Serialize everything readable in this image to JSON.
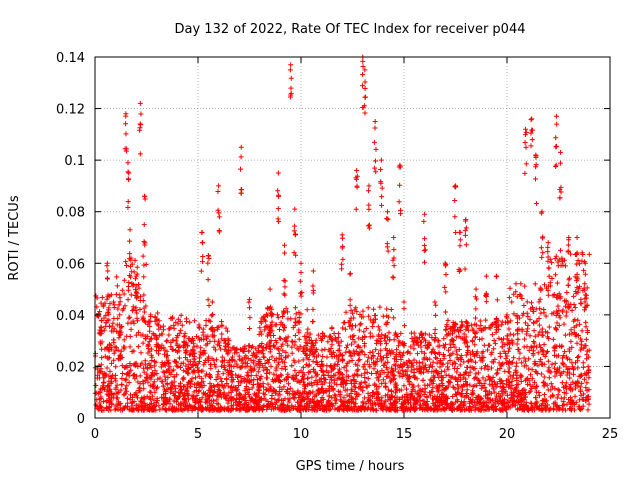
{
  "chart_data": {
    "type": "scatter",
    "title": "Day 132 of 2022, Rate Of TEC Index for receiver p044",
    "xlabel": "GPS time / hours",
    "ylabel": "ROTI / TECUs",
    "xlim": [
      0,
      25
    ],
    "ylim": [
      0,
      0.14
    ],
    "xticks": [
      0,
      5,
      10,
      15,
      20,
      25
    ],
    "xtick_labels": [
      "0",
      "5",
      "10",
      "15",
      "20",
      "25"
    ],
    "yticks": [
      0,
      0.02,
      0.04,
      0.06,
      0.08,
      0.1,
      0.12,
      0.14
    ],
    "ytick_labels": [
      "0",
      "0.02",
      "0.04",
      "0.06",
      "0.08",
      "0.1",
      "0.12",
      "0.14"
    ],
    "grid": true,
    "marker": "+",
    "marker_color": "#ff0000",
    "series": [
      {
        "x": [
          0.3,
          0.6,
          0.9,
          1.2,
          1.5,
          1.6,
          1.7,
          2.0,
          2.2,
          2.4,
          2.7,
          3.0,
          3.5,
          4.0,
          4.5,
          5.2,
          5.5,
          5.7,
          6.0,
          6.5,
          7.0,
          7.1,
          7.5,
          8.0,
          8.5,
          8.9,
          9.2,
          9.5,
          9.7,
          10.0,
          10.3,
          10.6,
          11.0,
          11.5,
          12.0,
          12.4,
          12.7,
          13.0,
          13.1,
          13.3,
          13.6,
          13.9,
          14.2,
          14.5,
          14.8,
          15.0,
          15.5,
          16.0,
          16.5,
          17.0,
          17.5,
          17.7,
          18.0,
          18.5,
          19.0,
          19.5,
          20.0,
          20.5,
          20.9,
          21.2,
          21.4,
          21.7,
          22.0,
          22.4,
          22.6,
          23.0,
          23.4,
          23.8
        ],
        "y": [
          0.035,
          0.06,
          0.045,
          0.04,
          0.118,
          0.099,
          0.073,
          0.055,
          0.122,
          0.086,
          0.04,
          0.038,
          0.03,
          0.032,
          0.028,
          0.072,
          0.063,
          0.045,
          0.09,
          0.03,
          0.024,
          0.105,
          0.046,
          0.035,
          0.05,
          0.095,
          0.067,
          0.137,
          0.081,
          0.06,
          0.042,
          0.057,
          0.03,
          0.035,
          0.071,
          0.056,
          0.096,
          0.14,
          0.135,
          0.09,
          0.115,
          0.1,
          0.08,
          0.07,
          0.098,
          0.045,
          0.03,
          0.079,
          0.045,
          0.06,
          0.09,
          0.072,
          0.077,
          0.05,
          0.055,
          0.055,
          0.04,
          0.047,
          0.112,
          0.116,
          0.102,
          0.08,
          0.068,
          0.117,
          0.103,
          0.07,
          0.07,
          0.06
        ]
      }
    ],
    "scatter_density": [
      {
        "t0": 0.0,
        "t1": 1.0,
        "hi": 0.045
      },
      {
        "t0": 1.0,
        "t1": 2.5,
        "hi": 0.06
      },
      {
        "t0": 2.5,
        "t1": 4.5,
        "hi": 0.038
      },
      {
        "t0": 4.5,
        "t1": 6.5,
        "hi": 0.035
      },
      {
        "t0": 6.5,
        "t1": 8.0,
        "hi": 0.025
      },
      {
        "t0": 8.0,
        "t1": 10.0,
        "hi": 0.04
      },
      {
        "t0": 10.0,
        "t1": 12.0,
        "hi": 0.03
      },
      {
        "t0": 12.0,
        "t1": 14.5,
        "hi": 0.04
      },
      {
        "t0": 14.5,
        "t1": 17.0,
        "hi": 0.03
      },
      {
        "t0": 17.0,
        "t1": 20.0,
        "hi": 0.035
      },
      {
        "t0": 20.0,
        "t1": 22.0,
        "hi": 0.05
      },
      {
        "t0": 22.0,
        "t1": 24.0,
        "hi": 0.062
      }
    ]
  }
}
